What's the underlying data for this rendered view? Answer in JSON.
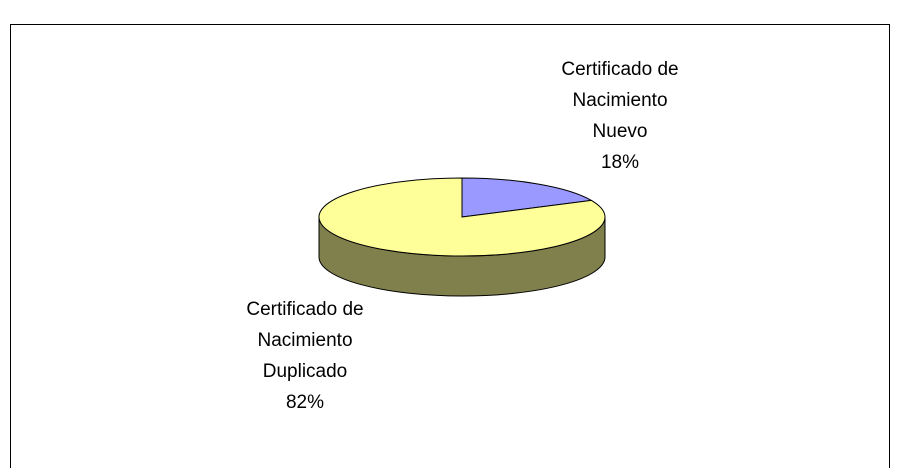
{
  "chart_data": {
    "type": "pie3d",
    "categories": [
      "Certificado de\nNacimiento\nNuevo",
      "Certificado de\nNacimiento\nDuplicado"
    ],
    "values": [
      18,
      82
    ],
    "value_labels": [
      "18%",
      "82%"
    ],
    "colors": [
      "#9999ff",
      "#ffff99"
    ]
  }
}
